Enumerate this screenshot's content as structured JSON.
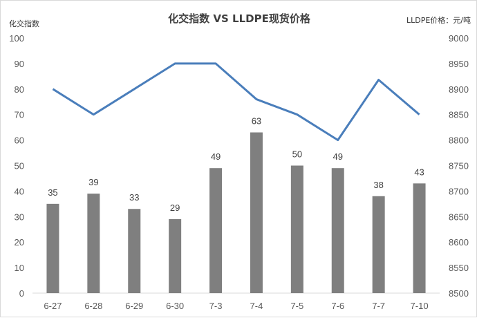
{
  "chart_data": {
    "type": "bar",
    "title": "化交指数 VS LLDPE现货价格",
    "left_axis_label": "化交指数",
    "right_axis_label": "LLDPE价格：元/吨",
    "categories": [
      "6-27",
      "6-28",
      "6-29",
      "6-30",
      "7-3",
      "7-4",
      "7-5",
      "7-6",
      "7-7",
      "7-10"
    ],
    "series": [
      {
        "type": "bar",
        "axis": "left",
        "values": [
          35,
          39,
          33,
          29,
          49,
          63,
          50,
          49,
          38,
          43
        ],
        "color": "#7f7f7f"
      },
      {
        "type": "line",
        "axis": "right",
        "values": [
          8900,
          8850,
          8900,
          8950,
          8950,
          8880,
          8850,
          8800,
          8918,
          8850
        ],
        "color": "#4a7ebb"
      }
    ],
    "left_ylim": [
      0,
      100
    ],
    "left_ticks": [
      "0",
      "10",
      "20",
      "30",
      "40",
      "50",
      "60",
      "70",
      "80",
      "90",
      "100"
    ],
    "right_ylim": [
      8500,
      9000
    ],
    "right_ticks": [
      "8500",
      "8550",
      "8600",
      "8650",
      "8700",
      "8750",
      "8800",
      "8850",
      "8900",
      "8950",
      "9000"
    ],
    "grid": false,
    "legend": "none"
  }
}
